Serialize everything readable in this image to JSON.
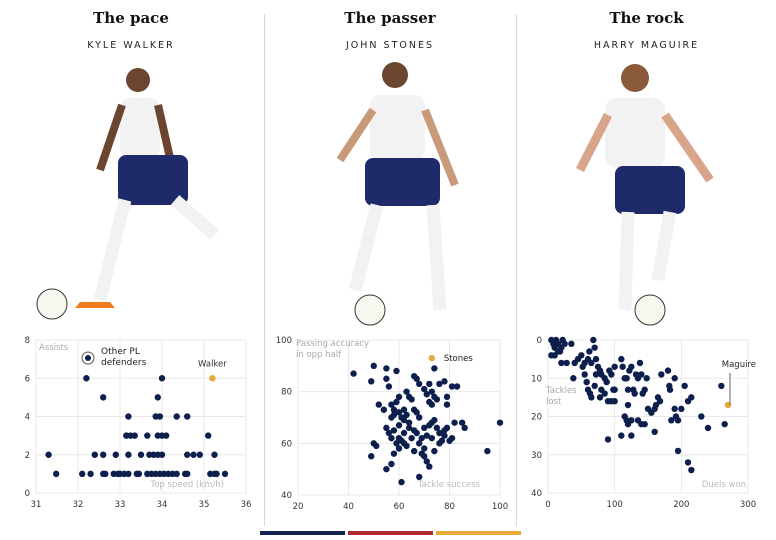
{
  "panels": [
    {
      "title": "The pace",
      "player": "KYLE WALKER"
    },
    {
      "title": "The passer",
      "player": "JOHN STONES"
    },
    {
      "title": "The rock",
      "player": "HARRY MAGUIRE"
    }
  ],
  "colors": {
    "others": "#0d1f4c",
    "highlight": "#e8a93a",
    "bar_navy": "#13224f",
    "bar_red": "#b02a30",
    "bar_yellow": "#e8a93a"
  },
  "chart_data": [
    {
      "type": "scatter",
      "xlabel": "Top speed (km/h)",
      "ylabel": "Assists",
      "xlim": [
        31,
        36
      ],
      "ylim": [
        0,
        8
      ],
      "xticks": [
        31,
        32,
        33,
        34,
        35,
        36
      ],
      "yticks": [
        0,
        2,
        4,
        6,
        8
      ],
      "grid": true,
      "legend": "Other PL defenders",
      "legend_placement": "top-left",
      "highlight": {
        "name": "Walker",
        "x": 35.2,
        "y": 6
      },
      "points": [
        [
          31.48,
          1
        ],
        [
          32.1,
          1
        ],
        [
          32.3,
          1
        ],
        [
          32.6,
          1
        ],
        [
          32.65,
          1
        ],
        [
          32.85,
          1
        ],
        [
          32.95,
          1
        ],
        [
          33.0,
          1
        ],
        [
          33.1,
          1
        ],
        [
          33.2,
          1
        ],
        [
          33.4,
          1
        ],
        [
          33.45,
          1
        ],
        [
          33.65,
          1
        ],
        [
          33.75,
          1
        ],
        [
          33.85,
          1
        ],
        [
          33.95,
          1
        ],
        [
          34.05,
          1
        ],
        [
          34.15,
          1
        ],
        [
          34.25,
          1
        ],
        [
          34.35,
          1
        ],
        [
          34.55,
          1
        ],
        [
          34.6,
          1
        ],
        [
          35.15,
          1
        ],
        [
          35.25,
          1
        ],
        [
          35.3,
          1
        ],
        [
          35.5,
          1
        ],
        [
          31.3,
          2
        ],
        [
          32.4,
          2
        ],
        [
          32.6,
          2
        ],
        [
          32.9,
          2
        ],
        [
          33.2,
          2
        ],
        [
          33.5,
          2
        ],
        [
          33.7,
          2
        ],
        [
          33.8,
          2
        ],
        [
          33.9,
          2
        ],
        [
          34.0,
          2
        ],
        [
          34.6,
          2
        ],
        [
          34.75,
          2
        ],
        [
          34.9,
          2
        ],
        [
          35.25,
          2
        ],
        [
          33.15,
          3
        ],
        [
          33.25,
          3
        ],
        [
          33.35,
          3
        ],
        [
          33.65,
          3
        ],
        [
          33.9,
          3
        ],
        [
          34.0,
          3
        ],
        [
          34.1,
          3
        ],
        [
          35.1,
          3
        ],
        [
          33.2,
          4
        ],
        [
          33.85,
          4
        ],
        [
          33.95,
          4
        ],
        [
          34.35,
          4
        ],
        [
          34.6,
          4
        ],
        [
          32.6,
          5
        ],
        [
          33.9,
          5
        ],
        [
          32.2,
          6
        ],
        [
          34.0,
          6
        ]
      ]
    },
    {
      "type": "scatter",
      "xlabel": "Tackle success",
      "ylabel": "Passing accuracy in opp half",
      "xlim": [
        20,
        100
      ],
      "ylim": [
        40,
        100
      ],
      "xticks": [
        20,
        40,
        60,
        80,
        100
      ],
      "yticks": [
        40,
        60,
        80,
        100
      ],
      "grid": true,
      "highlight": {
        "name": "Stones",
        "x": 73,
        "y": 93
      },
      "points": [
        [
          42,
          87
        ],
        [
          49,
          84
        ],
        [
          50,
          90
        ],
        [
          55,
          89
        ],
        [
          55,
          85
        ],
        [
          56,
          82
        ],
        [
          59,
          88
        ],
        [
          52,
          75
        ],
        [
          54,
          73
        ],
        [
          57,
          75
        ],
        [
          58,
          73
        ],
        [
          58,
          71
        ],
        [
          59,
          76
        ],
        [
          60,
          78
        ],
        [
          57,
          70
        ],
        [
          60,
          72
        ],
        [
          61,
          70
        ],
        [
          62,
          69
        ],
        [
          62,
          73
        ],
        [
          63,
          71
        ],
        [
          64,
          68
        ],
        [
          63,
          80
        ],
        [
          64,
          78
        ],
        [
          65,
          77
        ],
        [
          66,
          86
        ],
        [
          67,
          85
        ],
        [
          66,
          73
        ],
        [
          67,
          72
        ],
        [
          68,
          70
        ],
        [
          68,
          83
        ],
        [
          70,
          81
        ],
        [
          71,
          79
        ],
        [
          72,
          83
        ],
        [
          73,
          80
        ],
        [
          74,
          78
        ],
        [
          75,
          77
        ],
        [
          73,
          75
        ],
        [
          72,
          76
        ],
        [
          74,
          89
        ],
        [
          76,
          83
        ],
        [
          78,
          84
        ],
        [
          79,
          78
        ],
        [
          79,
          75
        ],
        [
          81,
          82
        ],
        [
          83,
          82
        ],
        [
          55,
          66
        ],
        [
          56,
          64
        ],
        [
          57,
          62
        ],
        [
          58,
          65
        ],
        [
          59,
          60
        ],
        [
          60,
          58
        ],
        [
          60,
          62
        ],
        [
          61,
          61
        ],
        [
          62,
          64
        ],
        [
          63,
          59
        ],
        [
          60,
          67
        ],
        [
          65,
          62
        ],
        [
          66,
          65
        ],
        [
          67,
          64
        ],
        [
          68,
          60
        ],
        [
          69,
          62
        ],
        [
          70,
          58
        ],
        [
          70,
          66
        ],
        [
          71,
          63
        ],
        [
          72,
          67
        ],
        [
          73,
          68
        ],
        [
          74,
          69
        ],
        [
          75,
          66
        ],
        [
          76,
          64
        ],
        [
          77,
          61
        ],
        [
          78,
          63
        ],
        [
          79,
          66
        ],
        [
          80,
          61
        ],
        [
          81,
          62
        ],
        [
          82,
          68
        ],
        [
          85,
          68
        ],
        [
          86,
          66
        ],
        [
          73,
          62
        ],
        [
          74,
          57
        ],
        [
          70,
          55
        ],
        [
          71,
          53
        ],
        [
          72,
          51
        ],
        [
          68,
          47
        ],
        [
          61,
          45
        ],
        [
          55,
          50
        ],
        [
          57,
          52
        ],
        [
          49,
          55
        ],
        [
          50,
          60
        ],
        [
          51,
          59
        ],
        [
          95,
          57
        ],
        [
          100,
          68
        ],
        [
          66,
          57
        ],
        [
          69,
          56
        ],
        [
          76,
          60
        ],
        [
          78,
          65
        ],
        [
          64,
          66
        ],
        [
          62,
          60
        ],
        [
          58,
          56
        ]
      ]
    },
    {
      "type": "scatter",
      "xlabel": "Duels won",
      "ylabel": "Tackles lost",
      "xlim": [
        0,
        300
      ],
      "ylim": [
        0,
        40
      ],
      "y_inverted": true,
      "xticks": [
        0,
        100,
        200,
        300
      ],
      "yticks": [
        0,
        10,
        20,
        30,
        40
      ],
      "grid": true,
      "highlight": {
        "name": "Maguire",
        "x": 270,
        "y": 17
      },
      "points": [
        [
          5,
          0
        ],
        [
          8,
          1
        ],
        [
          10,
          2
        ],
        [
          12,
          0
        ],
        [
          15,
          1
        ],
        [
          18,
          3
        ],
        [
          20,
          2
        ],
        [
          22,
          0
        ],
        [
          25,
          1
        ],
        [
          5,
          4
        ],
        [
          10,
          4
        ],
        [
          15,
          3
        ],
        [
          20,
          6
        ],
        [
          28,
          6
        ],
        [
          35,
          1
        ],
        [
          40,
          6
        ],
        [
          38,
          10
        ],
        [
          45,
          5
        ],
        [
          50,
          4
        ],
        [
          52,
          7
        ],
        [
          55,
          6
        ],
        [
          60,
          5
        ],
        [
          62,
          3
        ],
        [
          65,
          6
        ],
        [
          68,
          0
        ],
        [
          70,
          2
        ],
        [
          72,
          5
        ],
        [
          75,
          7
        ],
        [
          78,
          8
        ],
        [
          80,
          9
        ],
        [
          85,
          10
        ],
        [
          88,
          11
        ],
        [
          92,
          8
        ],
        [
          95,
          9
        ],
        [
          100,
          7
        ],
        [
          55,
          9
        ],
        [
          58,
          11
        ],
        [
          60,
          13
        ],
        [
          63,
          14
        ],
        [
          65,
          15
        ],
        [
          70,
          12
        ],
        [
          72,
          9
        ],
        [
          78,
          15
        ],
        [
          80,
          13
        ],
        [
          85,
          14
        ],
        [
          90,
          16
        ],
        [
          95,
          16
        ],
        [
          98,
          13
        ],
        [
          100,
          16
        ],
        [
          110,
          5
        ],
        [
          112,
          7
        ],
        [
          115,
          10
        ],
        [
          118,
          10
        ],
        [
          120,
          13
        ],
        [
          122,
          8
        ],
        [
          125,
          7
        ],
        [
          128,
          13
        ],
        [
          130,
          14
        ],
        [
          132,
          9
        ],
        [
          135,
          10
        ],
        [
          138,
          6
        ],
        [
          140,
          9
        ],
        [
          142,
          14
        ],
        [
          145,
          13
        ],
        [
          148,
          10
        ],
        [
          150,
          18
        ],
        [
          155,
          19
        ],
        [
          160,
          18
        ],
        [
          162,
          17
        ],
        [
          165,
          15
        ],
        [
          168,
          16
        ],
        [
          170,
          9
        ],
        [
          180,
          8
        ],
        [
          182,
          12
        ],
        [
          183,
          13
        ],
        [
          190,
          10
        ],
        [
          195,
          21
        ],
        [
          190,
          18
        ],
        [
          192,
          20
        ],
        [
          185,
          21
        ],
        [
          200,
          18
        ],
        [
          205,
          12
        ],
        [
          210,
          16
        ],
        [
          215,
          15
        ],
        [
          230,
          20
        ],
        [
          240,
          23
        ],
        [
          260,
          12
        ],
        [
          265,
          22
        ],
        [
          115,
          20
        ],
        [
          118,
          21
        ],
        [
          120,
          22
        ],
        [
          125,
          21
        ],
        [
          135,
          21
        ],
        [
          140,
          22
        ],
        [
          145,
          22
        ],
        [
          120,
          17
        ],
        [
          110,
          25
        ],
        [
          125,
          25
        ],
        [
          160,
          24
        ],
        [
          90,
          26
        ],
        [
          195,
          29
        ],
        [
          210,
          32
        ],
        [
          215,
          34
        ],
        [
          100,
          13
        ]
      ]
    }
  ]
}
